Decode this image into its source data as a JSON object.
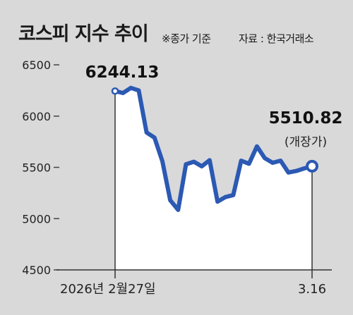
{
  "chart_data": {
    "type": "area",
    "title": "코스피 지수 추이",
    "subtitle": "※종가 기준",
    "source": "자료 : 한국거래소",
    "ylim": [
      4500,
      6500
    ],
    "yticks": [
      6500,
      6000,
      5500,
      5000,
      4500
    ],
    "x_labels": {
      "start": "2026년 2월27일",
      "end": "3.16"
    },
    "series": [
      {
        "values": [
          6244.13,
          6225,
          6275,
          6250,
          5840,
          5790,
          5560,
          5180,
          5085,
          5530,
          5555,
          5510,
          5570,
          5165,
          5210,
          5230,
          5565,
          5535,
          5705,
          5590,
          5545,
          5565,
          5450,
          5465,
          5490,
          5510.82
        ]
      }
    ],
    "annotations": {
      "start_value": "6244.13",
      "end_value": "5510.82",
      "end_note": "(개장가)"
    },
    "colors": {
      "line": "#2b59b3",
      "area": "#ffffff",
      "background": "#d9d9da"
    }
  }
}
